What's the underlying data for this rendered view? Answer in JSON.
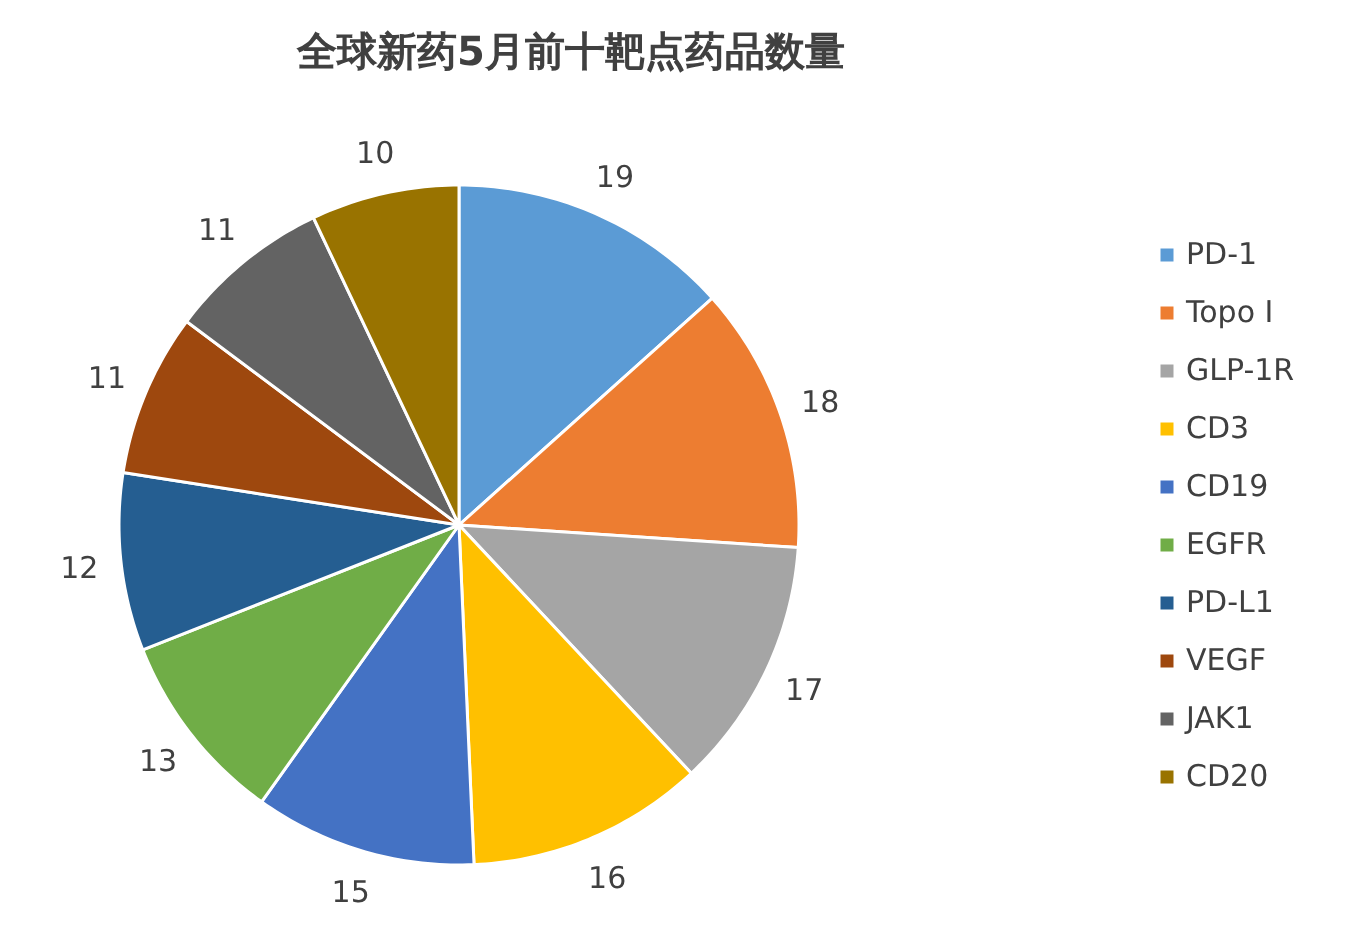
{
  "chart_data": {
    "type": "pie",
    "title": "全球新药5月前十靶点药品数量",
    "categories": [
      "PD-1",
      "Topo I",
      "GLP-1R",
      "CD3",
      "CD19",
      "EGFR",
      "PD-L1",
      "VEGF",
      "JAK1",
      "CD20"
    ],
    "values": [
      19,
      18,
      17,
      16,
      15,
      13,
      12,
      11,
      11,
      10
    ],
    "colors": [
      "#5b9bd5",
      "#ed7d31",
      "#a5a5a5",
      "#ffc000",
      "#4472c4",
      "#70ad47",
      "#255e91",
      "#9e480e",
      "#636363",
      "#997300"
    ],
    "data_labels": true,
    "legend": "right"
  }
}
